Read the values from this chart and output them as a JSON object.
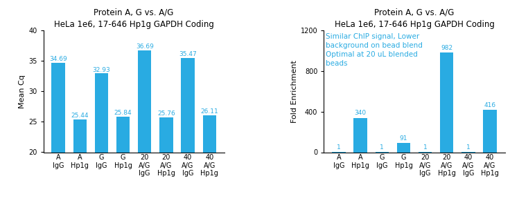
{
  "left_title": "Protein A, G vs. A/G\nHeLa 1e6, 17-646 Hp1g GAPDH Coding",
  "right_title": "Protein A, G vs. A/G\nHeLa 1e6, 17-646 Hp1g GAPDH Coding",
  "categories": [
    "A\nIgG",
    "A\nHp1g",
    "G\nIgG",
    "G\nHp1g",
    "20\nA/G\nIgG",
    "20\nA/G\nHp1g",
    "40\nA/G\nIgG",
    "40\nA/G\nHp1g"
  ],
  "left_values": [
    34.69,
    25.44,
    32.93,
    25.84,
    36.69,
    25.76,
    35.47,
    26.11
  ],
  "right_values": [
    1,
    340,
    1,
    91,
    1,
    982,
    1,
    416
  ],
  "left_ylabel": "Mean Cq",
  "right_ylabel": "Fold Enrichment",
  "left_ylim": [
    20,
    40
  ],
  "left_yticks": [
    20,
    25,
    30,
    35,
    40
  ],
  "right_ylim": [
    0,
    1200
  ],
  "right_yticks": [
    0,
    400,
    800,
    1200
  ],
  "bar_color": "#29ABE2",
  "label_color": "#29ABE2",
  "annotation": "Similar ChIP signal, Lower\nbackground on bead blend\nOptimal at 20 uL blended\nbeads",
  "annotation_color": "#29ABE2",
  "bg_color": "#ffffff",
  "title_fontsize": 8.5,
  "ylabel_fontsize": 8,
  "tick_fontsize": 7,
  "bar_label_fontsize": 6.5,
  "annotation_fontsize": 7.5
}
